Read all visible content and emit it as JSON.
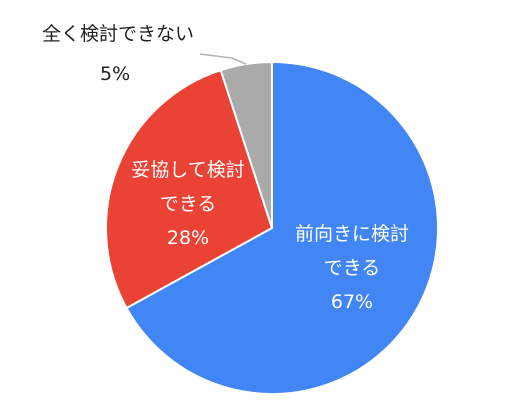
{
  "chart_data": {
    "type": "pie",
    "title": "",
    "start_angle_deg": 0,
    "direction": "clockwise",
    "slices": [
      {
        "label_lines": [
          "前向きに検討",
          "できる"
        ],
        "value": 67,
        "value_label": "67%",
        "color": "#4285F4",
        "label_position": "inside"
      },
      {
        "label_lines": [
          "妥協して検討",
          "できる"
        ],
        "value": 28,
        "value_label": "28%",
        "color": "#EA4335",
        "label_position": "inside"
      },
      {
        "label_lines": [
          "全く検討できない"
        ],
        "value": 5,
        "value_label": "5%",
        "color": "#AAAAAA",
        "label_position": "outside-leader"
      }
    ],
    "legend": "none"
  }
}
